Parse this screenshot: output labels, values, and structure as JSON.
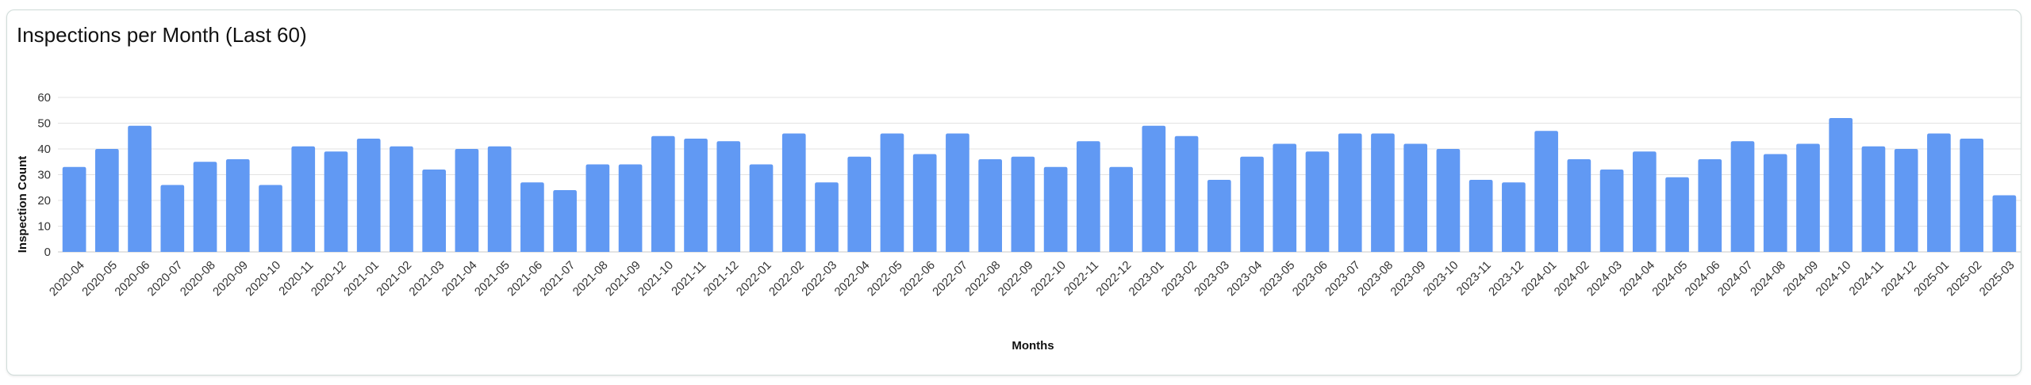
{
  "chart_data": {
    "type": "bar",
    "title": "Inspections per Month (Last 60)",
    "xlabel": "Months",
    "ylabel": "Inspection Count",
    "ylim": [
      0,
      60
    ],
    "yticks": [
      0,
      10,
      20,
      30,
      40,
      50,
      60
    ],
    "grid": true,
    "bar_color": "#6199f3",
    "categories": [
      "2020-04",
      "2020-05",
      "2020-06",
      "2020-07",
      "2020-08",
      "2020-09",
      "2020-10",
      "2020-11",
      "2020-12",
      "2021-01",
      "2021-02",
      "2021-03",
      "2021-04",
      "2021-05",
      "2021-06",
      "2021-07",
      "2021-08",
      "2021-09",
      "2021-10",
      "2021-11",
      "2021-12",
      "2022-01",
      "2022-02",
      "2022-03",
      "2022-04",
      "2022-05",
      "2022-06",
      "2022-07",
      "2022-08",
      "2022-09",
      "2022-10",
      "2022-11",
      "2022-12",
      "2023-01",
      "2023-02",
      "2023-03",
      "2023-04",
      "2023-05",
      "2023-06",
      "2023-07",
      "2023-08",
      "2023-09",
      "2023-10",
      "2023-11",
      "2023-12",
      "2024-01",
      "2024-02",
      "2024-03",
      "2024-04",
      "2024-05",
      "2024-06",
      "2024-07",
      "2024-08",
      "2024-09",
      "2024-10",
      "2024-11",
      "2024-12",
      "2025-01",
      "2025-02",
      "2025-03"
    ],
    "values": [
      33,
      40,
      49,
      26,
      35,
      36,
      26,
      41,
      39,
      44,
      41,
      32,
      40,
      41,
      27,
      24,
      34,
      34,
      45,
      44,
      43,
      34,
      46,
      27,
      37,
      46,
      38,
      46,
      36,
      37,
      33,
      43,
      33,
      49,
      45,
      28,
      37,
      42,
      39,
      46,
      46,
      42,
      40,
      28,
      27,
      47,
      36,
      32,
      39,
      29,
      36,
      43,
      38,
      42,
      52,
      41,
      40,
      46,
      44,
      22
    ]
  }
}
